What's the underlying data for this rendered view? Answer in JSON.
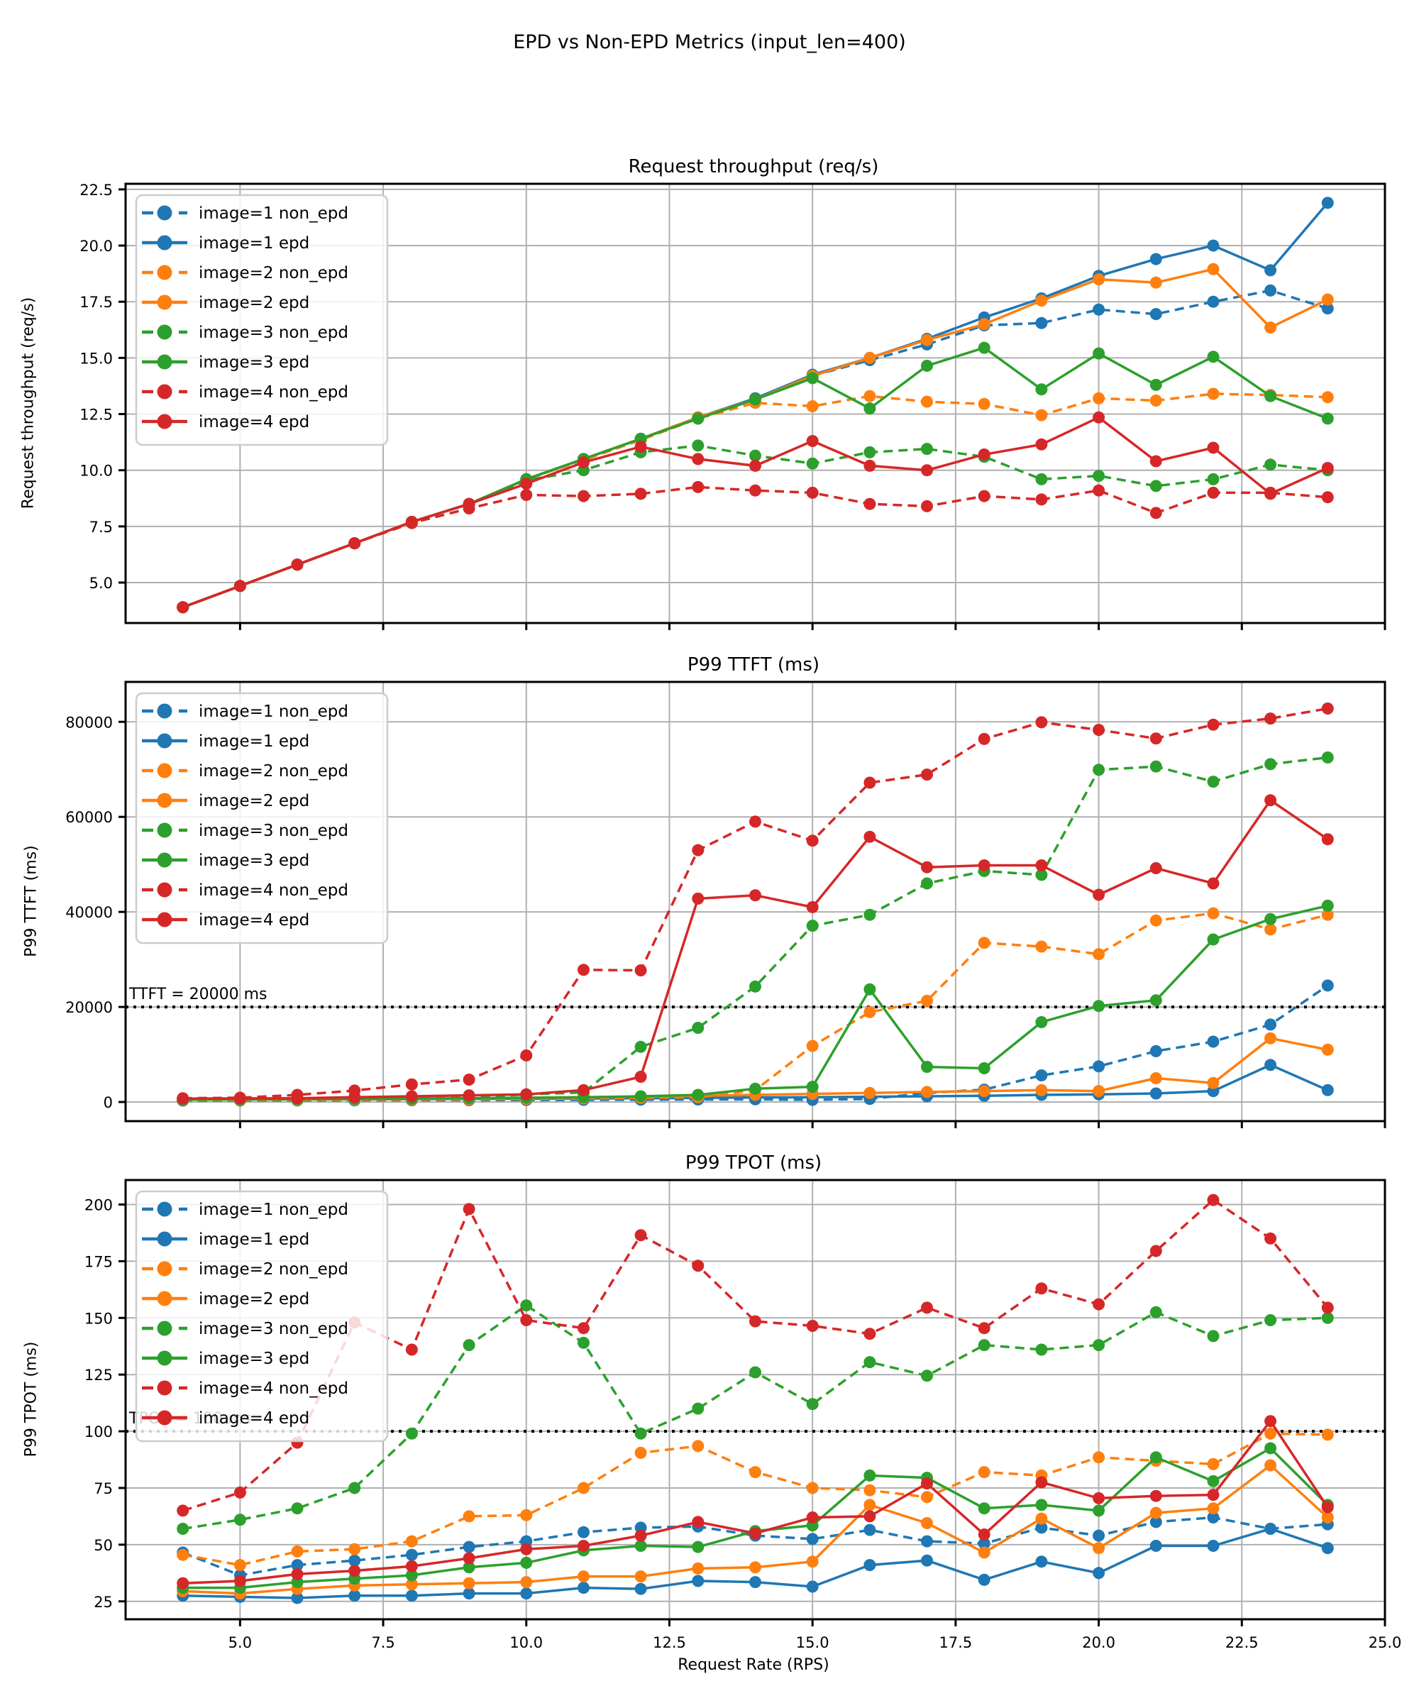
{
  "figure": {
    "suptitle": "EPD vs Non-EPD Metrics (input_len=400)",
    "xlabel": "Request Rate (RPS)",
    "background": "#ffffff",
    "grid_color": "#b0b0b0",
    "spine_color": "#000000",
    "threshold_color": "#000000",
    "legend_border_color": "#cccccc",
    "series_colors": {
      "blue": "#1f77b4",
      "orange": "#ff7f0e",
      "green": "#2ca02c",
      "red": "#d62728"
    }
  },
  "legend": {
    "items": [
      {
        "label": "image=1 non_epd",
        "color": "blue",
        "dashed": true
      },
      {
        "label": "image=1 epd",
        "color": "blue",
        "dashed": false
      },
      {
        "label": "image=2 non_epd",
        "color": "orange",
        "dashed": true
      },
      {
        "label": "image=2 epd",
        "color": "orange",
        "dashed": false
      },
      {
        "label": "image=3 non_epd",
        "color": "green",
        "dashed": true
      },
      {
        "label": "image=3 epd",
        "color": "green",
        "dashed": false
      },
      {
        "label": "image=4 non_epd",
        "color": "red",
        "dashed": true
      },
      {
        "label": "image=4 epd",
        "color": "red",
        "dashed": false
      }
    ]
  },
  "chart_data": [
    {
      "type": "line",
      "title": "Request throughput (req/s)",
      "ylabel": "Request throughput (req/s)",
      "x": [
        4,
        5,
        6,
        7,
        8,
        9,
        10,
        11,
        12,
        13,
        14,
        15,
        16,
        17,
        18,
        19,
        20,
        21,
        22,
        23,
        24
      ],
      "xlim": [
        3,
        25
      ],
      "ylim": [
        3.2,
        22.75
      ],
      "xticks": {
        "values": [
          5,
          7.5,
          10,
          12.5,
          15,
          17.5,
          20,
          22.5,
          25
        ],
        "labels": [
          "5.0",
          "7.5",
          "10.0",
          "12.5",
          "15.0",
          "17.5",
          "20.0",
          "22.5",
          "25.0"
        ],
        "show_labels": false
      },
      "yticks": {
        "values": [
          5,
          7.5,
          10,
          12.5,
          15,
          17.5,
          20,
          22.5
        ],
        "labels": [
          "5.0",
          "7.5",
          "10.0",
          "12.5",
          "15.0",
          "17.5",
          "20.0",
          "22.5"
        ]
      },
      "grid": true,
      "legend_position": "upper-left",
      "series": [
        {
          "name": "image=1 non_epd",
          "values": [
            3.9,
            4.85,
            5.8,
            6.75,
            7.7,
            8.5,
            9.6,
            10.5,
            11.4,
            12.35,
            13.2,
            14.2,
            14.9,
            15.6,
            16.45,
            16.55,
            17.15,
            16.95,
            17.5,
            18.0,
            17.2
          ]
        },
        {
          "name": "image=1 epd",
          "values": [
            3.9,
            4.85,
            5.8,
            6.75,
            7.7,
            8.5,
            9.6,
            10.5,
            11.4,
            12.35,
            13.2,
            14.25,
            15.0,
            15.85,
            16.8,
            17.65,
            18.65,
            19.4,
            20.0,
            18.9,
            21.9
          ]
        },
        {
          "name": "image=2 non_epd",
          "values": [
            3.9,
            4.85,
            5.8,
            6.75,
            7.7,
            8.5,
            9.6,
            10.45,
            11.35,
            12.3,
            13.0,
            12.85,
            13.3,
            13.05,
            12.95,
            12.45,
            13.2,
            13.1,
            13.4,
            13.35,
            13.25
          ]
        },
        {
          "name": "image=2 epd",
          "values": [
            3.9,
            4.85,
            5.8,
            6.75,
            7.7,
            8.5,
            9.6,
            10.5,
            11.4,
            12.35,
            13.15,
            14.2,
            15.0,
            15.8,
            16.5,
            17.55,
            18.5,
            18.35,
            18.95,
            16.35,
            17.6
          ]
        },
        {
          "name": "image=3 non_epd",
          "values": [
            3.9,
            4.85,
            5.8,
            6.75,
            7.7,
            8.5,
            9.55,
            10.0,
            10.8,
            11.1,
            10.65,
            10.3,
            10.8,
            10.95,
            10.6,
            9.6,
            9.75,
            9.3,
            9.6,
            10.25,
            10.0
          ]
        },
        {
          "name": "image=3 epd",
          "values": [
            3.9,
            4.85,
            5.8,
            6.75,
            7.7,
            8.5,
            9.6,
            10.5,
            11.4,
            12.3,
            13.15,
            14.1,
            12.75,
            14.65,
            15.45,
            13.6,
            15.2,
            13.8,
            15.05,
            13.3,
            12.3
          ]
        },
        {
          "name": "image=4 non_epd",
          "values": [
            3.9,
            4.85,
            5.8,
            6.75,
            7.65,
            8.3,
            8.9,
            8.85,
            8.95,
            9.25,
            9.1,
            9.0,
            8.5,
            8.4,
            8.85,
            8.7,
            9.1,
            8.1,
            9.0,
            9.0,
            8.8
          ]
        },
        {
          "name": "image=4 epd",
          "values": [
            3.9,
            4.85,
            5.8,
            6.75,
            7.7,
            8.5,
            9.4,
            10.35,
            11.05,
            10.5,
            10.2,
            11.3,
            10.2,
            10.0,
            10.7,
            11.15,
            12.35,
            10.4,
            11.0,
            8.95,
            10.1
          ]
        }
      ]
    },
    {
      "type": "line",
      "title": "P99 TTFT (ms)",
      "ylabel": "P99 TTFT (ms)",
      "x": [
        4,
        5,
        6,
        7,
        8,
        9,
        10,
        11,
        12,
        13,
        14,
        15,
        16,
        17,
        18,
        19,
        20,
        21,
        22,
        23,
        24
      ],
      "xlim": [
        3,
        25
      ],
      "ylim": [
        -4030,
        88400
      ],
      "xticks": {
        "values": [
          5,
          7.5,
          10,
          12.5,
          15,
          17.5,
          20,
          22.5,
          25
        ],
        "labels": [
          "5.0",
          "7.5",
          "10.0",
          "12.5",
          "15.0",
          "17.5",
          "20.0",
          "22.5",
          "25.0"
        ],
        "show_labels": false
      },
      "yticks": {
        "values": [
          0,
          20000,
          40000,
          60000,
          80000
        ],
        "labels": [
          "0",
          "20000",
          "40000",
          "60000",
          "80000"
        ]
      },
      "grid": true,
      "legend_position": "upper-left",
      "threshold": {
        "value": 20000,
        "label": "TTFT = 20000 ms"
      },
      "series": [
        {
          "name": "image=1 non_epd",
          "values": [
            300,
            310,
            330,
            350,
            370,
            390,
            420,
            450,
            480,
            520,
            560,
            450,
            650,
            1900,
            2600,
            5600,
            7500,
            10700,
            12700,
            16300,
            24500
          ]
        },
        {
          "name": "image=1 epd",
          "values": [
            500,
            520,
            540,
            560,
            600,
            650,
            700,
            750,
            800,
            850,
            950,
            1000,
            1100,
            1200,
            1300,
            1500,
            1600,
            1800,
            2300,
            7800,
            2500
          ]
        },
        {
          "name": "image=2 non_epd",
          "values": [
            400,
            420,
            450,
            480,
            520,
            560,
            650,
            750,
            850,
            1000,
            2500,
            11800,
            18900,
            21300,
            33500,
            32700,
            31100,
            38200,
            39700,
            36300,
            39400
          ]
        },
        {
          "name": "image=2 epd",
          "values": [
            500,
            520,
            550,
            600,
            680,
            750,
            850,
            950,
            1100,
            1300,
            1500,
            1700,
            1900,
            2100,
            2300,
            2500,
            2300,
            5000,
            4000,
            13400,
            11000
          ]
        },
        {
          "name": "image=3 non_epd",
          "values": [
            500,
            550,
            600,
            680,
            750,
            900,
            1600,
            2000,
            11600,
            15600,
            24300,
            37100,
            39400,
            46000,
            48600,
            47800,
            69900,
            70600,
            67400,
            71100,
            72500
          ]
        },
        {
          "name": "image=3 epd",
          "values": [
            500,
            550,
            600,
            650,
            700,
            800,
            900,
            1000,
            1200,
            1500,
            2800,
            3200,
            23700,
            7400,
            7100,
            16800,
            20200,
            21400,
            34200,
            38500,
            41300
          ]
        },
        {
          "name": "image=4 non_epd",
          "values": [
            800,
            900,
            1500,
            2400,
            3700,
            4700,
            9800,
            27800,
            27700,
            53000,
            59000,
            55000,
            67200,
            68900,
            76400,
            79900,
            78300,
            76500,
            79400,
            80700,
            82800
          ]
        },
        {
          "name": "image=4 epd",
          "values": [
            700,
            750,
            800,
            1000,
            1200,
            1400,
            1600,
            2500,
            5300,
            42800,
            43500,
            41000,
            55800,
            49400,
            49800,
            49800,
            43600,
            49200,
            46000,
            63500,
            55300
          ]
        }
      ]
    },
    {
      "type": "line",
      "title": "P99 TPOT (ms)",
      "ylabel": "P99 TPOT (ms)",
      "x": [
        4,
        5,
        6,
        7,
        8,
        9,
        10,
        11,
        12,
        13,
        14,
        15,
        16,
        17,
        18,
        19,
        20,
        21,
        22,
        23,
        24
      ],
      "xlim": [
        3,
        25
      ],
      "ylim": [
        17.1,
        210.8
      ],
      "xticks": {
        "values": [
          5,
          7.5,
          10,
          12.5,
          15,
          17.5,
          20,
          22.5,
          25
        ],
        "labels": [
          "5.0",
          "7.5",
          "10.0",
          "12.5",
          "15.0",
          "17.5",
          "20.0",
          "22.5",
          "25.0"
        ],
        "show_labels": true
      },
      "yticks": {
        "values": [
          25,
          50,
          75,
          100,
          125,
          150,
          175,
          200
        ],
        "labels": [
          "25",
          "50",
          "75",
          "100",
          "125",
          "150",
          "175",
          "200"
        ]
      },
      "grid": true,
      "legend_position": "upper-left",
      "threshold": {
        "value": 100,
        "label": "TPOT = 100 ms"
      },
      "series": [
        {
          "name": "image=1 non_epd",
          "values": [
            46.5,
            36.5,
            41,
            43,
            45.5,
            49,
            51.5,
            55.5,
            57.5,
            58,
            54,
            52.5,
            56.5,
            51.5,
            50.5,
            57.5,
            54,
            60,
            62,
            57,
            59
          ]
        },
        {
          "name": "image=1 epd",
          "values": [
            27.5,
            27,
            26.5,
            27.5,
            27.5,
            28.5,
            28.5,
            31,
            30.5,
            34,
            33.5,
            31.5,
            41,
            43,
            34.5,
            42.5,
            37.5,
            49.5,
            49.5,
            57,
            48.5
          ]
        },
        {
          "name": "image=2 non_epd",
          "values": [
            45.5,
            41,
            47,
            48,
            51.5,
            62.5,
            63,
            75,
            90.5,
            93.5,
            82,
            75,
            74,
            71,
            82,
            80.5,
            88.5,
            87,
            85.5,
            99,
            98.5
          ]
        },
        {
          "name": "image=2 epd",
          "values": [
            29.5,
            28.5,
            30.5,
            32,
            32.5,
            33,
            33.5,
            36,
            36,
            39.5,
            40,
            42.5,
            67.5,
            59.5,
            46.5,
            61.5,
            48.5,
            64,
            66,
            85,
            62
          ]
        },
        {
          "name": "image=3 non_epd",
          "values": [
            57,
            61,
            66,
            75,
            99,
            138,
            155.5,
            139,
            99,
            110,
            126,
            112,
            130.5,
            124.5,
            138,
            136,
            138,
            152.5,
            142,
            149,
            150
          ]
        },
        {
          "name": "image=3 epd",
          "values": [
            31,
            31,
            33.5,
            35,
            36.5,
            40,
            42,
            47.5,
            49.5,
            49,
            56,
            58.5,
            80.5,
            79.5,
            66,
            67.5,
            65,
            88.5,
            78,
            92.5,
            67.5
          ]
        },
        {
          "name": "image=4 non_epd",
          "values": [
            65,
            73,
            95,
            148,
            136,
            198,
            149,
            145.5,
            186.5,
            173,
            148.5,
            146.5,
            143,
            154.5,
            145.5,
            163,
            156,
            179.5,
            202,
            185,
            154.5
          ]
        },
        {
          "name": "image=4 epd",
          "values": [
            33,
            34,
            37,
            38.5,
            40.5,
            44,
            48,
            49.5,
            54,
            60,
            55,
            62,
            62.5,
            77,
            54.5,
            77.5,
            70.5,
            71.5,
            72,
            104.5,
            66.5
          ]
        }
      ]
    }
  ]
}
